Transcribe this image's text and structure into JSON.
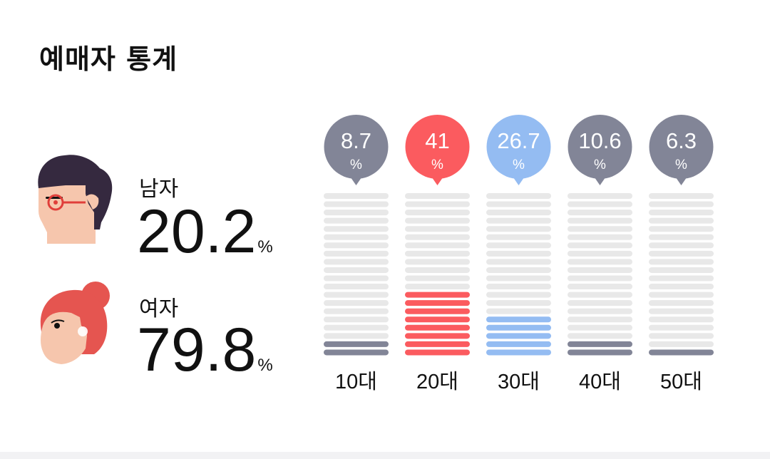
{
  "title": "예매자 통계",
  "gender": {
    "male": {
      "label": "남자",
      "value": "20.2",
      "unit": "%"
    },
    "female": {
      "label": "여자",
      "value": "79.8",
      "unit": "%"
    }
  },
  "icons": {
    "male": "man-with-glasses-icon",
    "female": "woman-with-bun-icon"
  },
  "colors": {
    "bar_empty": "#e8e8e8",
    "default_filled": "#828597",
    "highlight_top": "#fb5b5f",
    "highlight_second": "#94bcf2",
    "male_hair": "#35293f",
    "female_hair": "#e55550",
    "skin": "#f6c6ad"
  },
  "chart_data": {
    "type": "bar",
    "categories": [
      "10대",
      "20대",
      "30대",
      "40대",
      "50대"
    ],
    "values": [
      8.7,
      41,
      26.7,
      10.6,
      6.3
    ],
    "value_labels": [
      "8.7",
      "41",
      "26.7",
      "10.6",
      "6.3"
    ],
    "unit": "%",
    "title": "",
    "xlabel": "",
    "ylabel": "",
    "ylim": [
      0,
      100
    ],
    "bar_colors": [
      "#828597",
      "#fb5b5f",
      "#94bcf2",
      "#828597",
      "#828597"
    ],
    "segments_per_bar": 20,
    "legend": "none",
    "grid": false
  }
}
